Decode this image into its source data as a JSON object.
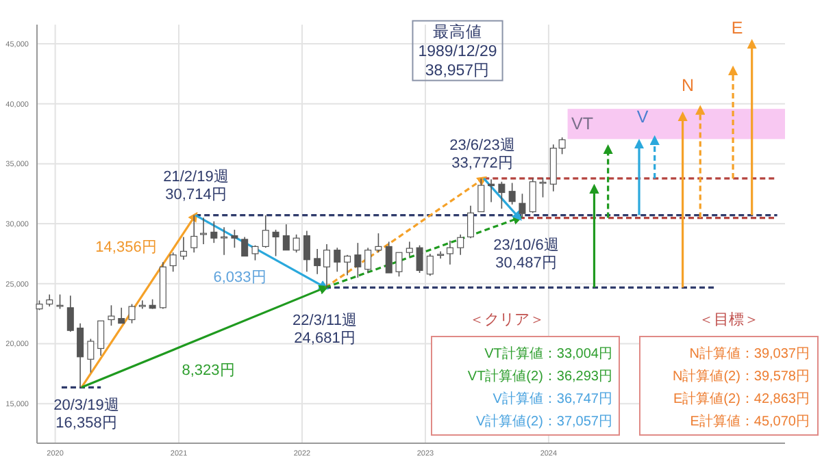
{
  "chart_data": {
    "type": "candlestick",
    "grid": true,
    "xlim": [
      "2019-11-08",
      "2025-12-01"
    ],
    "ylim": [
      11700,
      46600
    ],
    "xticks": [
      {
        "value": "2020-01-01",
        "label": "2020"
      },
      {
        "value": "2021-01-01",
        "label": "2021"
      },
      {
        "value": "2022-01-01",
        "label": "2022"
      },
      {
        "value": "2023-01-01",
        "label": "2023"
      },
      {
        "value": "2024-01-01",
        "label": "2024"
      }
    ],
    "yticks": [
      {
        "value": 15000,
        "label": "15,000"
      },
      {
        "value": 20000,
        "label": "20,000"
      },
      {
        "value": 25000,
        "label": "25,000"
      },
      {
        "value": 30000,
        "label": "30,000"
      },
      {
        "value": 35000,
        "label": "35,000"
      },
      {
        "value": 40000,
        "label": "40,000"
      },
      {
        "value": 45000,
        "label": "45,000"
      }
    ],
    "x": [
      "2019-11-15",
      "2019-12-15",
      "2020-01-15",
      "2020-02-15",
      "2020-03-15",
      "2020-04-15",
      "2020-05-15",
      "2020-06-15",
      "2020-07-15",
      "2020-08-15",
      "2020-09-15",
      "2020-10-15",
      "2020-11-15",
      "2020-12-15",
      "2021-01-15",
      "2021-02-15",
      "2021-03-15",
      "2021-04-15",
      "2021-05-15",
      "2021-06-15",
      "2021-07-15",
      "2021-08-15",
      "2021-09-15",
      "2021-10-15",
      "2021-11-15",
      "2021-12-15",
      "2022-01-15",
      "2022-02-15",
      "2022-03-15",
      "2022-04-15",
      "2022-05-15",
      "2022-06-15",
      "2022-07-15",
      "2022-08-15",
      "2022-09-15",
      "2022-10-15",
      "2022-11-15",
      "2022-12-15",
      "2023-01-15",
      "2023-02-15",
      "2023-03-15",
      "2023-04-15",
      "2023-05-15",
      "2023-06-15",
      "2023-07-15",
      "2023-08-15",
      "2023-09-15",
      "2023-10-15",
      "2023-11-15",
      "2023-12-15",
      "2024-01-15",
      "2024-02-10"
    ],
    "ohlc": [
      [
        22900,
        23600,
        22800,
        23300
      ],
      [
        23300,
        24100,
        23100,
        23650
      ],
      [
        23200,
        24100,
        22900,
        23200
      ],
      [
        23000,
        24000,
        21000,
        21100
      ],
      [
        21300,
        21700,
        16358,
        18900
      ],
      [
        18700,
        20400,
        17600,
        20200
      ],
      [
        19600,
        21900,
        19000,
        21900
      ],
      [
        22000,
        23200,
        21500,
        22300
      ],
      [
        22100,
        23000,
        21700,
        21700
      ],
      [
        22000,
        23300,
        21700,
        23100
      ],
      [
        23100,
        23600,
        22900,
        23200
      ],
      [
        23200,
        23700,
        22900,
        22950
      ],
      [
        23000,
        26800,
        22900,
        26400
      ],
      [
        26500,
        27600,
        26000,
        27400
      ],
      [
        27300,
        28900,
        27000,
        27700
      ],
      [
        28000,
        30714,
        27600,
        28950
      ],
      [
        29100,
        30500,
        28300,
        29200
      ],
      [
        29300,
        30200,
        28400,
        28800
      ],
      [
        28900,
        29700,
        27400,
        28900
      ],
      [
        29000,
        29500,
        28000,
        28800
      ],
      [
        28700,
        28900,
        27300,
        27300
      ],
      [
        27500,
        28200,
        26950,
        28100
      ],
      [
        28100,
        30700,
        28000,
        29450
      ],
      [
        29300,
        29500,
        27300,
        28900
      ],
      [
        29000,
        29950,
        27800,
        27800
      ],
      [
        27800,
        29100,
        27600,
        28800
      ],
      [
        29000,
        29400,
        26000,
        27000
      ],
      [
        27100,
        27900,
        25800,
        26500
      ],
      [
        26400,
        28300,
        24681,
        27800
      ],
      [
        27800,
        28000,
        26000,
        26800
      ],
      [
        26800,
        27400,
        25700,
        27300
      ],
      [
        27400,
        28400,
        25500,
        26400
      ],
      [
        26200,
        28000,
        25900,
        27800
      ],
      [
        27800,
        29200,
        27600,
        28100
      ],
      [
        28100,
        28500,
        25900,
        25900
      ],
      [
        26000,
        27600,
        25600,
        27600
      ],
      [
        27600,
        28500,
        27300,
        27950
      ],
      [
        28000,
        28200,
        25900,
        26100
      ],
      [
        25800,
        27500,
        25660,
        27300
      ],
      [
        27400,
        27700,
        27100,
        27450
      ],
      [
        27500,
        28600,
        26600,
        28000
      ],
      [
        28000,
        29100,
        27400,
        28850
      ],
      [
        28900,
        31500,
        28800,
        30900
      ],
      [
        31000,
        33772,
        31000,
        33200
      ],
      [
        33300,
        33700,
        31800,
        33170
      ],
      [
        33300,
        33500,
        31250,
        32600
      ],
      [
        32700,
        33400,
        31600,
        31850
      ],
      [
        31700,
        32500,
        30487,
        30850
      ],
      [
        31000,
        33800,
        30900,
        33500
      ],
      [
        33400,
        33850,
        32200,
        33460
      ],
      [
        33300,
        36600,
        32700,
        36300
      ],
      [
        36300,
        37200,
        35800,
        37000
      ]
    ],
    "bands": [
      {
        "axis": "y",
        "from": 37057,
        "to": 39578,
        "color": "#f8c8f2"
      }
    ],
    "series": [
      {
        "type": "line",
        "x": [
          "2020-01-20",
          "2020-05-15"
        ],
        "values": [
          16358,
          16358
        ],
        "color": "#2f3b6b",
        "line_style": "dashed"
      },
      {
        "type": "line",
        "x": [
          "2021-02-19",
          "2025-11-08"
        ],
        "values": [
          30714,
          30714
        ],
        "color": "#2f3b6b",
        "line_style": "dashed"
      },
      {
        "type": "line",
        "x": [
          "2022-03-11",
          "2025-05-10"
        ],
        "values": [
          24681,
          24681
        ],
        "color": "#2f3b6b",
        "line_style": "dashed"
      },
      {
        "type": "line",
        "x": [
          "2023-06-23",
          "2025-11-08"
        ],
        "values": [
          33772,
          33772
        ],
        "color": "#b5443f",
        "line_style": "dashed"
      },
      {
        "type": "line",
        "x": [
          "2023-10-06",
          "2025-11-08"
        ],
        "values": [
          30487,
          30487
        ],
        "color": "#b5443f",
        "line_style": "dashed"
      },
      {
        "type": "line",
        "x": [
          "2020-03-19",
          "2021-02-19"
        ],
        "values": [
          16358,
          30714
        ],
        "color": "#f5a128",
        "line_style": "solid"
      },
      {
        "type": "line",
        "x": [
          "2021-02-19",
          "2022-03-11"
        ],
        "values": [
          30714,
          24681
        ],
        "color": "#2aa8dc",
        "line_style": "solid"
      },
      {
        "type": "line",
        "x": [
          "2020-03-19",
          "2022-03-11"
        ],
        "values": [
          16358,
          24681
        ],
        "color": "#1f9a1f",
        "line_style": "solid"
      },
      {
        "type": "line",
        "x": [
          "2022-03-11",
          "2023-06-23"
        ],
        "values": [
          24681,
          33772
        ],
        "color": "#f5a128",
        "line_style": "dashed"
      },
      {
        "type": "line",
        "x": [
          "2022-03-11",
          "2023-10-06"
        ],
        "values": [
          24681,
          30487
        ],
        "color": "#1f9a1f",
        "line_style": "dashed"
      },
      {
        "type": "line",
        "x": [
          "2023-06-23",
          "2023-10-06"
        ],
        "values": [
          33772,
          30487
        ],
        "color": "#2aa8dc",
        "line_style": "solid"
      },
      {
        "type": "line",
        "x": [
          "2024-05-15",
          "2024-05-15"
        ],
        "values": [
          24681,
          33004
        ],
        "color": "#1f9a1f",
        "line_style": "solid"
      },
      {
        "type": "line",
        "x": [
          "2024-06-25",
          "2024-06-25"
        ],
        "values": [
          30487,
          36293
        ],
        "color": "#1f9a1f",
        "line_style": "dashed"
      },
      {
        "type": "line",
        "x": [
          "2024-09-25",
          "2024-09-25"
        ],
        "values": [
          30714,
          36747
        ],
        "color": "#2aa8dc",
        "line_style": "solid"
      },
      {
        "type": "line",
        "x": [
          "2024-11-10",
          "2024-11-10"
        ],
        "values": [
          33772,
          37057
        ],
        "color": "#2aa8dc",
        "line_style": "dashed"
      },
      {
        "type": "line",
        "x": [
          "2025-02-01",
          "2025-02-01"
        ],
        "values": [
          24681,
          39037
        ],
        "color": "#f5a128",
        "line_style": "solid"
      },
      {
        "type": "line",
        "x": [
          "2025-03-25",
          "2025-03-25"
        ],
        "values": [
          30487,
          39578
        ],
        "color": "#f5a128",
        "line_style": "dashed"
      },
      {
        "type": "line",
        "x": [
          "2025-06-30",
          "2025-06-30"
        ],
        "values": [
          33772,
          42863
        ],
        "color": "#f5a128",
        "line_style": "dashed"
      },
      {
        "type": "line",
        "x": [
          "2025-08-25",
          "2025-08-25"
        ],
        "values": [
          30714,
          45070
        ],
        "color": "#f5a128",
        "line_style": "solid"
      }
    ],
    "annotations": [
      "20/3/19週\n16,358円",
      "21/2/19週\n30,714円",
      "14,356円",
      "6,033円",
      "8,323円",
      "22/3/11週\n24,681円",
      "23/6/23週\n33,772円",
      "23/10/6週\n30,487円",
      "VT",
      "V",
      "N",
      "E",
      "最高値\n1989/12/29\n38,957円",
      "＜クリア＞",
      "VT計算値：33,004円",
      "VT計算値(2)：36,293円",
      "V計算値：36,747円",
      "V計算値(2)：37,057円",
      "＜目標＞",
      "N計算値：39,037円",
      "N計算値(2)：39,578円",
      "E計算値(2)：42,863円",
      "E計算値：45,070円"
    ]
  }
}
